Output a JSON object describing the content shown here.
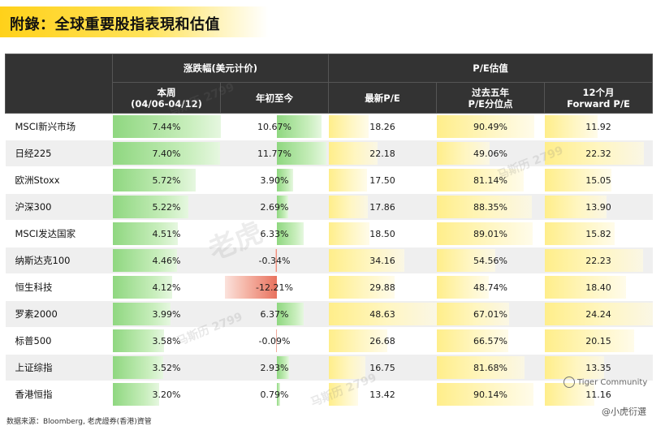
{
  "title": "附錄：全球重要股指表現和估值",
  "header": {
    "group_return": "涨跌幅(美元计价)",
    "group_pe": "P/E估值",
    "col_week": "本周\n(04/06-04/12)",
    "col_ytd": "年初至今",
    "col_pe_latest": "最新P/E",
    "col_pe_pct": "过去五年\nP/E分位点",
    "col_fwd_pe": "12个月\nForward P/E"
  },
  "rows": [
    {
      "name": "MSCI新兴市场",
      "week": "7.44%",
      "ytd": "10.67%",
      "pe": "18.26",
      "pct": "90.49%",
      "fwd": "11.92",
      "week_v": 7.44,
      "ytd_v": 10.67,
      "pe_v": 18.26,
      "pct_v": 90.49,
      "fwd_v": 11.92
    },
    {
      "name": "日经225",
      "week": "7.40%",
      "ytd": "11.77%",
      "pe": "22.18",
      "pct": "49.06%",
      "fwd": "22.32",
      "week_v": 7.4,
      "ytd_v": 11.77,
      "pe_v": 22.18,
      "pct_v": 49.06,
      "fwd_v": 22.32
    },
    {
      "name": "欧洲Stoxx",
      "week": "5.72%",
      "ytd": "3.90%",
      "pe": "17.50",
      "pct": "81.14%",
      "fwd": "15.05",
      "week_v": 5.72,
      "ytd_v": 3.9,
      "pe_v": 17.5,
      "pct_v": 81.14,
      "fwd_v": 15.05
    },
    {
      "name": "沪深300",
      "week": "5.22%",
      "ytd": "2.69%",
      "pe": "17.86",
      "pct": "88.35%",
      "fwd": "13.90",
      "week_v": 5.22,
      "ytd_v": 2.69,
      "pe_v": 17.86,
      "pct_v": 88.35,
      "fwd_v": 13.9
    },
    {
      "name": "MSCI发达国家",
      "week": "4.51%",
      "ytd": "6.33%",
      "pe": "18.50",
      "pct": "89.01%",
      "fwd": "15.82",
      "week_v": 4.51,
      "ytd_v": 6.33,
      "pe_v": 18.5,
      "pct_v": 89.01,
      "fwd_v": 15.82
    },
    {
      "name": "纳斯达克100",
      "week": "4.46%",
      "ytd": "-0.34%",
      "pe": "34.16",
      "pct": "54.56%",
      "fwd": "22.23",
      "week_v": 4.46,
      "ytd_v": -0.34,
      "pe_v": 34.16,
      "pct_v": 54.56,
      "fwd_v": 22.23
    },
    {
      "name": "恒生科技",
      "week": "4.12%",
      "ytd": "-12.21%",
      "pe": "29.88",
      "pct": "48.74%",
      "fwd": "18.40",
      "week_v": 4.12,
      "ytd_v": -12.21,
      "pe_v": 29.88,
      "pct_v": 48.74,
      "fwd_v": 18.4
    },
    {
      "name": "罗素2000",
      "week": "3.99%",
      "ytd": "6.37%",
      "pe": "48.63",
      "pct": "67.01%",
      "fwd": "24.24",
      "week_v": 3.99,
      "ytd_v": 6.37,
      "pe_v": 48.63,
      "pct_v": 67.01,
      "fwd_v": 24.24
    },
    {
      "name": "标普500",
      "week": "3.58%",
      "ytd": "-0.09%",
      "pe": "26.68",
      "pct": "66.57%",
      "fwd": "20.15",
      "week_v": 3.58,
      "ytd_v": -0.09,
      "pe_v": 26.68,
      "pct_v": 66.57,
      "fwd_v": 20.15
    },
    {
      "name": "上证综指",
      "week": "3.52%",
      "ytd": "2.93%",
      "pe": "16.75",
      "pct": "81.68%",
      "fwd": "13.35",
      "week_v": 3.52,
      "ytd_v": 2.93,
      "pe_v": 16.75,
      "pct_v": 81.68,
      "fwd_v": 13.35
    },
    {
      "name": "香港恒指",
      "week": "3.20%",
      "ytd": "0.79%",
      "pe": "13.42",
      "pct": "90.14%",
      "fwd": "11.16",
      "week_v": 3.2,
      "ytd_v": 0.79,
      "pe_v": 13.42,
      "pct_v": 90.14,
      "fwd_v": 11.16
    }
  ],
  "colors": {
    "header_bg": "#333333",
    "positive_bar": "#8fd780",
    "negative_bar": "#e8725e",
    "pe_bar": "#ffee8a",
    "title_bar": "#ffd11a"
  },
  "footnote": "数据来源：Bloomberg, 老虎證券(香港)資管",
  "watermark_brand": "Tiger Community",
  "watermark_badge": "@小虎衍選",
  "watermark_text": "老虎",
  "watermark_small": "马斯历 2799"
}
